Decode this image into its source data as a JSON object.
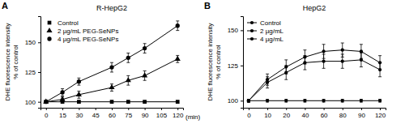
{
  "chart_data": [
    {
      "type": "line",
      "label": "A",
      "title": "R-HepG2",
      "xlabel": "(min)",
      "ylabel": [
        "DHE fluorescence intensity",
        "% of control"
      ],
      "x": [
        0,
        15,
        30,
        60,
        75,
        90,
        120
      ],
      "xlim": [
        -5,
        125
      ],
      "xticks": [
        0,
        15,
        30,
        45,
        60,
        75,
        90,
        105,
        120
      ],
      "ylim": [
        95,
        172
      ],
      "yticks": [
        100,
        125,
        150
      ],
      "legend": "upper left",
      "series": [
        {
          "name": "Control",
          "color": "#000000",
          "marker": "square",
          "values": [
            100,
            100,
            100,
            100,
            100,
            100,
            100
          ],
          "errors": [
            1,
            1,
            1,
            1,
            1,
            1,
            1
          ]
        },
        {
          "name": "2 µg/mL PEG-SeNPs",
          "color": "#000000",
          "marker": "triangle",
          "values": [
            100,
            102,
            106,
            112,
            118,
            122,
            136
          ],
          "errors": [
            1,
            2,
            3,
            3,
            4,
            4,
            3
          ]
        },
        {
          "name": "4 µg/mL PEG-SeNPs",
          "color": "#000000",
          "marker": "circle",
          "values": [
            100,
            108,
            117,
            129,
            137,
            145,
            164
          ],
          "errors": [
            1,
            3,
            3,
            4,
            4,
            4,
            4
          ]
        }
      ]
    },
    {
      "type": "line",
      "label": "B",
      "title": "HepG2",
      "ylabel": [
        "DHE fluorescence intensity",
        "% of control"
      ],
      "categories": [
        "0",
        "10",
        "20",
        "40",
        "60",
        "80",
        "90",
        "120"
      ],
      "ylim": [
        95,
        160
      ],
      "yticks": [
        100,
        125,
        150
      ],
      "legend": "upper left",
      "series": [
        {
          "name": "Control",
          "color": "#000000",
          "marker": "circle",
          "values": [
            100,
            100,
            100,
            100,
            100,
            100,
            100,
            100
          ],
          "errors": [
            1,
            1,
            1,
            1,
            1,
            1,
            1,
            1
          ]
        },
        {
          "name": "2 µg/mL",
          "color": "#000000",
          "marker": "circle",
          "values": [
            100,
            115,
            124,
            131,
            135,
            136,
            135,
            127
          ],
          "errors": [
            1,
            4,
            5,
            5,
            5,
            5,
            5,
            5
          ]
        },
        {
          "name": "4 µg/mL",
          "color": "#000000",
          "marker": "circle",
          "values": [
            100,
            113,
            120,
            127,
            128,
            128,
            129,
            122
          ],
          "errors": [
            1,
            4,
            5,
            5,
            5,
            5,
            5,
            5
          ]
        }
      ]
    }
  ]
}
